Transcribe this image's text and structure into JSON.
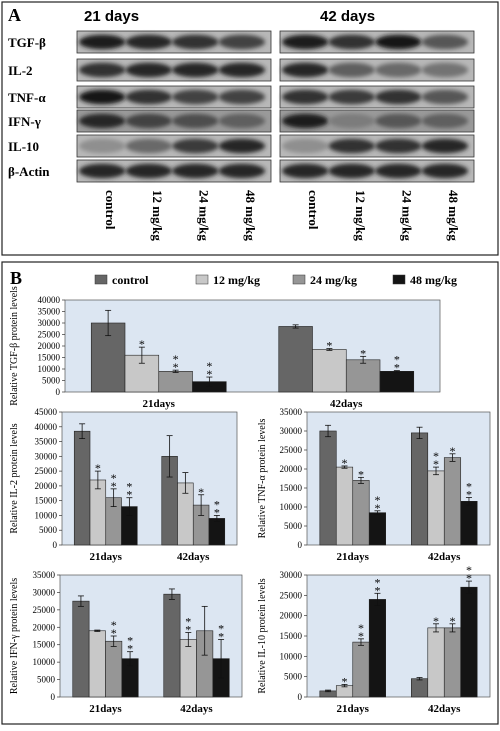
{
  "panel_a": {
    "label": "A",
    "groups": [
      {
        "title": "21 days",
        "bands": [
          [
            0.9,
            0.85,
            0.8,
            0.7
          ],
          [
            0.8,
            0.85,
            0.85,
            0.85
          ],
          [
            0.95,
            0.8,
            0.7,
            0.7
          ],
          [
            0.85,
            0.7,
            0.65,
            0.55
          ],
          [
            0.3,
            0.5,
            0.75,
            0.85
          ],
          [
            0.85,
            0.85,
            0.85,
            0.85
          ]
        ]
      },
      {
        "title": "42 days",
        "bands": [
          [
            0.9,
            0.8,
            0.95,
            0.6
          ],
          [
            0.85,
            0.55,
            0.5,
            0.45
          ],
          [
            0.8,
            0.75,
            0.8,
            0.6
          ],
          [
            0.9,
            0.4,
            0.6,
            0.55
          ],
          [
            0.3,
            0.8,
            0.8,
            0.85
          ],
          [
            0.85,
            0.85,
            0.85,
            0.85
          ]
        ]
      }
    ],
    "row_labels": [
      "TGF-β",
      "IL-2",
      "TNF-α",
      "IFN-γ",
      "IL-10",
      "β-Actin"
    ],
    "lane_labels": [
      "control",
      "12 mg/kg",
      "24 mg/kg",
      "48 mg/kg"
    ]
  },
  "panel_b": {
    "label": "B",
    "legend": [
      "control",
      "12 mg/kg",
      "24 mg/kg",
      "48 mg/kg"
    ]
  },
  "colors": {
    "series": [
      "#666666",
      "#c8c8c8",
      "#969696",
      "#141414"
    ],
    "plot_bg": "#dce6f2",
    "border": "#333333"
  },
  "chart_data": [
    {
      "type": "bar",
      "ylabel": "Relative TGF-β protein levels",
      "categories": [
        "21days",
        "42days"
      ],
      "ylim": [
        0,
        40000
      ],
      "yticks": [
        0,
        5000,
        10000,
        15000,
        20000,
        25000,
        30000,
        35000,
        40000
      ],
      "series": [
        {
          "name": "control",
          "values": [
            30000,
            28500
          ],
          "errors": [
            5500,
            700
          ]
        },
        {
          "name": "12 mg/kg",
          "values": [
            16000,
            18500
          ],
          "errors": [
            3500,
            400
          ]
        },
        {
          "name": "24 mg/kg",
          "values": [
            9000,
            14000
          ],
          "errors": [
            500,
            1500
          ]
        },
        {
          "name": "48 mg/kg",
          "values": [
            4500,
            9000
          ],
          "errors": [
            2000,
            300
          ]
        }
      ],
      "marks": [
        [
          "",
          "*",
          "**",
          "**"
        ],
        [
          "",
          "*",
          "*",
          "**"
        ]
      ]
    },
    {
      "type": "bar",
      "ylabel": "Relative IL-2 protein levels",
      "categories": [
        "21days",
        "42days"
      ],
      "ylim": [
        0,
        45000
      ],
      "yticks": [
        0,
        5000,
        10000,
        15000,
        20000,
        25000,
        30000,
        35000,
        40000,
        45000
      ],
      "series": [
        {
          "name": "control",
          "values": [
            38500,
            30000
          ],
          "errors": [
            2500,
            7000
          ]
        },
        {
          "name": "12 mg/kg",
          "values": [
            22000,
            21000
          ],
          "errors": [
            3000,
            3500
          ]
        },
        {
          "name": "24 mg/kg",
          "values": [
            16000,
            13500
          ],
          "errors": [
            3000,
            3500
          ]
        },
        {
          "name": "48 mg/kg",
          "values": [
            13000,
            9000
          ],
          "errors": [
            3000,
            1000
          ]
        }
      ],
      "marks": [
        [
          "",
          "*",
          "**",
          "**"
        ],
        [
          "",
          "",
          "*",
          "**"
        ]
      ]
    },
    {
      "type": "bar",
      "ylabel": "Relative TNF-α protein levels",
      "categories": [
        "21days",
        "42days"
      ],
      "ylim": [
        0,
        35000
      ],
      "yticks": [
        0,
        5000,
        10000,
        15000,
        20000,
        25000,
        30000,
        35000
      ],
      "series": [
        {
          "name": "control",
          "values": [
            30000,
            29500
          ],
          "errors": [
            1500,
            1500
          ]
        },
        {
          "name": "12 mg/kg",
          "values": [
            20500,
            19500
          ],
          "errors": [
            300,
            1000
          ]
        },
        {
          "name": "24 mg/kg",
          "values": [
            17000,
            23000
          ],
          "errors": [
            800,
            1000
          ]
        },
        {
          "name": "48 mg/kg",
          "values": [
            8500,
            11500
          ],
          "errors": [
            500,
            1000
          ]
        }
      ],
      "marks": [
        [
          "",
          "*",
          "*",
          "**"
        ],
        [
          "",
          "**",
          "*",
          "**"
        ]
      ]
    },
    {
      "type": "bar",
      "ylabel": "Relative IFN-γ protein levels",
      "categories": [
        "21days",
        "42days"
      ],
      "ylim": [
        0,
        35000
      ],
      "yticks": [
        0,
        5000,
        10000,
        15000,
        20000,
        25000,
        30000,
        35000
      ],
      "series": [
        {
          "name": "control",
          "values": [
            27500,
            29500
          ],
          "errors": [
            1500,
            1500
          ]
        },
        {
          "name": "12 mg/kg",
          "values": [
            19000,
            16500
          ],
          "errors": [
            200,
            2000
          ]
        },
        {
          "name": "24 mg/kg",
          "values": [
            16000,
            19000
          ],
          "errors": [
            1500,
            7000
          ]
        },
        {
          "name": "48 mg/kg",
          "values": [
            11000,
            11000
          ],
          "errors": [
            2000,
            5500
          ]
        }
      ],
      "marks": [
        [
          "",
          "",
          "**",
          "**"
        ],
        [
          "",
          "**",
          "",
          "**"
        ]
      ]
    },
    {
      "type": "bar",
      "ylabel": "Relative IL-10 protein levels",
      "categories": [
        "21days",
        "42days"
      ],
      "ylim": [
        0,
        30000
      ],
      "yticks": [
        0,
        5000,
        10000,
        15000,
        20000,
        25000,
        30000
      ],
      "series": [
        {
          "name": "control",
          "values": [
            1500,
            4500
          ],
          "errors": [
            200,
            300
          ]
        },
        {
          "name": "12 mg/kg",
          "values": [
            2800,
            17000
          ],
          "errors": [
            300,
            1000
          ]
        },
        {
          "name": "24 mg/kg",
          "values": [
            13500,
            17000
          ],
          "errors": [
            800,
            1000
          ]
        },
        {
          "name": "48 mg/kg",
          "values": [
            24000,
            27000
          ],
          "errors": [
            1500,
            1500
          ]
        }
      ],
      "marks": [
        [
          "",
          "*",
          "**",
          "**"
        ],
        [
          "",
          "*",
          "*",
          "**"
        ]
      ]
    }
  ]
}
